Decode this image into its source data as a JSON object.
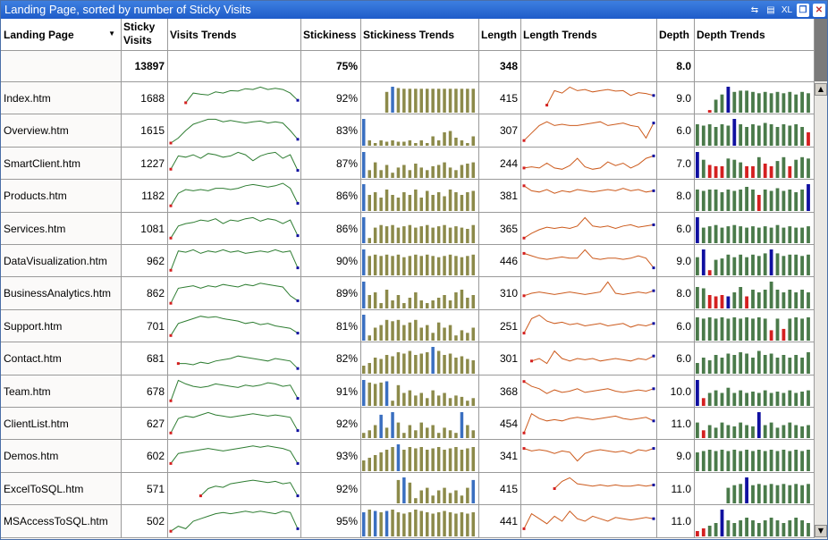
{
  "window": {
    "title": "Landing Page, sorted by number of Sticky Visits",
    "buttons": {
      "b1": "⇆",
      "b2": "▤",
      "xl": "XL",
      "restore": "❐",
      "close": "✕"
    }
  },
  "headers": {
    "page": "Landing Page",
    "sticky_line1": "Sticky",
    "sticky_line2": "Visits",
    "visits_trends": "Visits Trends",
    "stickiness": "Stickiness",
    "stickiness_trends": "Stickiness Trends",
    "length": "Length",
    "length_trends": "Length Trends",
    "depth": "Depth",
    "depth_trends": "Depth Trends"
  },
  "totals": {
    "sticky": "13897",
    "stickiness": "75%",
    "length": "348",
    "depth": "8.0"
  },
  "colors": {
    "visits_line": "#2e7d32",
    "stickiness_bar": "#8c8a4a",
    "stickiness_hi": "#3a6fc0",
    "length_line": "#cc5a1c",
    "depth_bar": "#4a7a4a",
    "depth_low": "#d42020",
    "depth_hi": "#1010a0",
    "start_dot": "#d42020",
    "end_dot": "#1010a0"
  },
  "rows": [
    {
      "page": "Index.htm",
      "sticky": "1688",
      "stickiness": "92%",
      "length": "415",
      "depth": "9.0",
      "visits": [
        null,
        null,
        0.3,
        0.7,
        0.65,
        0.62,
        0.75,
        0.7,
        0.8,
        0.78,
        0.88,
        0.85,
        0.95,
        0.85,
        0.9,
        0.85,
        0.7,
        0.4
      ],
      "stick": [
        0,
        0,
        0,
        0,
        0.8,
        1.0,
        0.95,
        0.92,
        0.92,
        0.92,
        0.92,
        0.92,
        0.92,
        0.92,
        0.92,
        0.92,
        0.92,
        0.92,
        0.92,
        0.92
      ],
      "stick_hi": [
        5
      ],
      "len": [
        null,
        null,
        null,
        0.2,
        0.8,
        0.7,
        0.95,
        0.8,
        0.85,
        0.75,
        0.8,
        0.85,
        0.78,
        0.8,
        0.6,
        0.72,
        0.68,
        0.6
      ],
      "dep": [
        0,
        0,
        0.1,
        0.5,
        0.7,
        1.0,
        0.8,
        0.85,
        0.85,
        0.8,
        0.75,
        0.8,
        0.75,
        0.8,
        0.75,
        0.8,
        0.7,
        0.8,
        0.75
      ],
      "dep_low": [
        2
      ],
      "dep_hi": [
        5
      ]
    },
    {
      "page": "Overview.htm",
      "sticky": "1615",
      "stickiness": "83%",
      "length": "307",
      "depth": "6.0",
      "visits": [
        0.0,
        0.2,
        0.5,
        0.75,
        0.85,
        0.95,
        0.95,
        0.85,
        0.9,
        0.85,
        0.8,
        0.85,
        0.88,
        0.8,
        0.85,
        0.8,
        0.5,
        0.15
      ],
      "stick": [
        1.0,
        0.2,
        0.1,
        0.2,
        0.15,
        0.2,
        0.15,
        0.15,
        0.2,
        0.1,
        0.2,
        0.1,
        0.35,
        0.2,
        0.5,
        0.55,
        0.3,
        0.2,
        0.1,
        0.35
      ],
      "stick_hi": [
        0
      ],
      "len": [
        0.1,
        0.4,
        0.7,
        0.85,
        0.7,
        0.75,
        0.7,
        0.7,
        0.75,
        0.8,
        0.85,
        0.7,
        0.75,
        0.8,
        0.7,
        0.65,
        0.2,
        0.8
      ],
      "dep": [
        0.8,
        0.75,
        0.8,
        0.7,
        0.8,
        0.75,
        1.0,
        0.8,
        0.7,
        0.8,
        0.75,
        0.85,
        0.8,
        0.7,
        0.8,
        0.75,
        0.8,
        0.7,
        0.5
      ],
      "dep_low": [
        18
      ],
      "dep_hi": [
        6
      ]
    },
    {
      "page": "SmartClient.htm",
      "sticky": "1227",
      "stickiness": "87%",
      "length": "244",
      "depth": "7.0",
      "visits": [
        0.25,
        0.8,
        0.75,
        0.85,
        0.7,
        0.9,
        0.85,
        0.75,
        0.8,
        0.95,
        0.85,
        0.6,
        0.8,
        0.9,
        0.95,
        0.7,
        0.85,
        0.2
      ],
      "stick": [
        1.0,
        0.3,
        0.6,
        0.3,
        0.5,
        0.2,
        0.4,
        0.5,
        0.3,
        0.55,
        0.4,
        0.3,
        0.45,
        0.5,
        0.6,
        0.4,
        0.3,
        0.5,
        0.55,
        0.6
      ],
      "stick_hi": [
        0
      ],
      "len": [
        0.3,
        0.35,
        0.3,
        0.5,
        0.3,
        0.25,
        0.4,
        0.7,
        0.35,
        0.25,
        0.3,
        0.55,
        0.4,
        0.5,
        0.3,
        0.45,
        0.7,
        0.8
      ],
      "dep": [
        1.0,
        0.7,
        0.5,
        0.45,
        0.45,
        0.75,
        0.7,
        0.6,
        0.45,
        0.45,
        0.8,
        0.55,
        0.45,
        0.65,
        0.8,
        0.45,
        0.7,
        0.8,
        0.75
      ],
      "dep_low": [
        2,
        3,
        4,
        8,
        9,
        11,
        12,
        15
      ],
      "dep_hi": [
        0
      ]
    },
    {
      "page": "Products.htm",
      "sticky": "1182",
      "stickiness": "86%",
      "length": "381",
      "depth": "8.0",
      "visits": [
        0.1,
        0.6,
        0.75,
        0.7,
        0.75,
        0.7,
        0.8,
        0.8,
        0.75,
        0.8,
        0.9,
        0.95,
        0.9,
        0.85,
        0.9,
        1.0,
        0.8,
        0.2
      ],
      "stick": [
        1.0,
        0.6,
        0.7,
        0.5,
        0.8,
        0.6,
        0.5,
        0.7,
        0.6,
        0.8,
        0.5,
        0.75,
        0.6,
        0.7,
        0.55,
        0.8,
        0.7,
        0.6,
        0.7,
        0.75
      ],
      "stick_hi": [
        0
      ],
      "len": [
        0.9,
        0.7,
        0.65,
        0.75,
        0.6,
        0.7,
        0.65,
        0.75,
        0.7,
        0.65,
        0.7,
        0.75,
        0.7,
        0.8,
        0.7,
        0.75,
        0.65,
        0.7
      ],
      "dep": [
        0.8,
        0.75,
        0.8,
        0.8,
        0.7,
        0.8,
        0.75,
        0.8,
        0.9,
        0.8,
        0.6,
        0.8,
        0.75,
        0.85,
        0.75,
        0.8,
        0.7,
        0.8,
        1.0
      ],
      "dep_low": [
        10
      ],
      "dep_hi": [
        18
      ]
    },
    {
      "page": "Services.htm",
      "sticky": "1081",
      "stickiness": "86%",
      "length": "365",
      "depth": "6.0",
      "visits": [
        0.1,
        0.6,
        0.7,
        0.75,
        0.85,
        0.8,
        0.9,
        0.7,
        0.85,
        0.8,
        0.9,
        0.95,
        0.8,
        0.9,
        0.85,
        0.7,
        0.85,
        0.2
      ],
      "stick": [
        1.0,
        0.2,
        0.6,
        0.7,
        0.65,
        0.7,
        0.6,
        0.65,
        0.7,
        0.6,
        0.65,
        0.7,
        0.6,
        0.65,
        0.7,
        0.6,
        0.65,
        0.6,
        0.55,
        0.7
      ],
      "stick_hi": [
        0
      ],
      "len": [
        0.1,
        0.3,
        0.45,
        0.55,
        0.5,
        0.55,
        0.5,
        0.6,
        0.95,
        0.6,
        0.55,
        0.6,
        0.5,
        0.6,
        0.65,
        0.55,
        0.6,
        0.65
      ],
      "dep": [
        1.0,
        0.6,
        0.65,
        0.7,
        0.6,
        0.65,
        0.7,
        0.65,
        0.6,
        0.65,
        0.6,
        0.65,
        0.6,
        0.7,
        0.6,
        0.65,
        0.6,
        0.6,
        0.65
      ],
      "dep_low": [],
      "dep_hi": [
        0
      ]
    },
    {
      "page": "DataVisualization.htm",
      "sticky": "962",
      "stickiness": "90%",
      "length": "446",
      "depth": "9.0",
      "visits": [
        0.1,
        0.9,
        0.85,
        0.95,
        0.8,
        0.9,
        0.85,
        0.95,
        0.85,
        0.9,
        0.8,
        0.85,
        0.9,
        0.85,
        0.95,
        0.85,
        0.9,
        0.2
      ],
      "stick": [
        1.0,
        0.75,
        0.8,
        0.75,
        0.8,
        0.75,
        0.8,
        0.7,
        0.75,
        0.8,
        0.75,
        0.8,
        0.75,
        0.7,
        0.75,
        0.8,
        0.75,
        0.7,
        0.75,
        0.8
      ],
      "stick_hi": [
        0
      ],
      "len": [
        0.8,
        0.7,
        0.6,
        0.55,
        0.6,
        0.65,
        0.6,
        0.6,
        0.95,
        0.6,
        0.55,
        0.6,
        0.6,
        0.55,
        0.6,
        0.7,
        0.6,
        0.2
      ],
      "dep": [
        0.7,
        1.0,
        0.2,
        0.6,
        0.65,
        0.8,
        0.7,
        0.8,
        0.7,
        0.8,
        0.75,
        0.85,
        1.0,
        0.85,
        0.75,
        0.8,
        0.8,
        0.75,
        0.8
      ],
      "dep_low": [
        2
      ],
      "dep_hi": [
        1,
        12
      ]
    },
    {
      "page": "BusinessAnalytics.htm",
      "sticky": "862",
      "stickiness": "89%",
      "length": "310",
      "depth": "8.0",
      "visits": [
        0.1,
        0.7,
        0.75,
        0.8,
        0.7,
        0.8,
        0.75,
        0.85,
        0.8,
        0.75,
        0.85,
        0.8,
        0.9,
        0.85,
        0.8,
        0.75,
        0.4,
        0.2
      ],
      "stick": [
        1.0,
        0.5,
        0.6,
        0.2,
        0.7,
        0.3,
        0.5,
        0.2,
        0.4,
        0.6,
        0.3,
        0.2,
        0.3,
        0.4,
        0.5,
        0.3,
        0.6,
        0.7,
        0.4,
        0.5
      ],
      "stick_hi": [
        0
      ],
      "len": [
        0.4,
        0.5,
        0.55,
        0.5,
        0.45,
        0.5,
        0.55,
        0.5,
        0.45,
        0.5,
        0.55,
        0.95,
        0.5,
        0.45,
        0.5,
        0.55,
        0.5,
        0.6
      ],
      "dep": [
        0.8,
        0.75,
        0.5,
        0.45,
        0.5,
        0.45,
        0.6,
        0.8,
        0.45,
        0.7,
        0.6,
        0.7,
        1.0,
        0.7,
        0.6,
        0.7,
        0.6,
        0.7,
        0.6
      ],
      "dep_low": [
        2,
        3,
        4,
        8
      ],
      "dep_hi": [
        5
      ]
    },
    {
      "page": "Support.htm",
      "sticky": "701",
      "stickiness": "81%",
      "length": "251",
      "depth": "6.0",
      "visits": [
        0.1,
        0.6,
        0.7,
        0.8,
        0.9,
        0.85,
        0.88,
        0.8,
        0.75,
        0.7,
        0.6,
        0.65,
        0.55,
        0.6,
        0.5,
        0.45,
        0.4,
        0.2
      ],
      "stick": [
        1.0,
        0.2,
        0.5,
        0.6,
        0.8,
        0.75,
        0.8,
        0.6,
        0.7,
        0.8,
        0.5,
        0.6,
        0.3,
        0.7,
        0.5,
        0.6,
        0.2,
        0.4,
        0.3,
        0.5
      ],
      "stick_hi": [
        0
      ],
      "len": [
        0.2,
        0.8,
        0.95,
        0.7,
        0.6,
        0.65,
        0.55,
        0.6,
        0.5,
        0.55,
        0.6,
        0.5,
        0.55,
        0.6,
        0.45,
        0.55,
        0.5,
        0.6
      ],
      "dep": [
        0.9,
        0.85,
        0.9,
        0.85,
        0.9,
        0.85,
        0.9,
        0.85,
        0.9,
        0.85,
        0.9,
        0.85,
        0.4,
        0.85,
        0.45,
        0.85,
        0.9,
        0.85,
        0.9
      ],
      "dep_low": [
        12,
        14
      ],
      "dep_hi": []
    },
    {
      "page": "Contact.htm",
      "sticky": "681",
      "stickiness": "82%",
      "length": "301",
      "depth": "6.0",
      "visits": [
        null,
        0.3,
        0.3,
        0.25,
        0.35,
        0.3,
        0.4,
        0.45,
        0.5,
        0.6,
        0.55,
        0.5,
        0.45,
        0.4,
        0.5,
        0.45,
        0.4,
        0.1
      ],
      "stick": [
        0.3,
        0.4,
        0.6,
        0.55,
        0.7,
        0.65,
        0.8,
        0.75,
        0.85,
        0.7,
        0.75,
        0.8,
        1.0,
        0.85,
        0.7,
        0.75,
        0.6,
        0.65,
        0.55,
        0.5
      ],
      "stick_hi": [
        12
      ],
      "len": [
        null,
        0.4,
        0.5,
        0.3,
        0.8,
        0.5,
        0.4,
        0.5,
        0.45,
        0.5,
        0.4,
        0.45,
        0.5,
        0.45,
        0.4,
        0.5,
        0.45,
        0.6
      ],
      "dep": [
        0.4,
        0.6,
        0.5,
        0.7,
        0.6,
        0.75,
        0.7,
        0.8,
        0.75,
        0.6,
        0.85,
        0.7,
        0.75,
        0.6,
        0.7,
        0.6,
        0.7,
        0.6,
        0.8
      ],
      "dep_low": [],
      "dep_hi": []
    },
    {
      "page": "Team.htm",
      "sticky": "678",
      "stickiness": "91%",
      "length": "368",
      "depth": "10.0",
      "visits": [
        0.1,
        0.95,
        0.8,
        0.7,
        0.65,
        0.7,
        0.8,
        0.75,
        0.7,
        0.65,
        0.75,
        0.7,
        0.75,
        0.85,
        0.8,
        0.7,
        0.75,
        0.2
      ],
      "stick": [
        1.0,
        0.9,
        0.85,
        0.9,
        0.95,
        0.2,
        0.8,
        0.5,
        0.6,
        0.4,
        0.5,
        0.3,
        0.6,
        0.4,
        0.5,
        0.3,
        0.4,
        0.35,
        0.2,
        0.3
      ],
      "stick_hi": [
        0,
        4
      ],
      "len": [
        0.9,
        0.7,
        0.6,
        0.4,
        0.55,
        0.45,
        0.5,
        0.6,
        0.45,
        0.5,
        0.55,
        0.6,
        0.5,
        0.45,
        0.5,
        0.55,
        0.5,
        0.6
      ],
      "dep": [
        1.0,
        0.3,
        0.5,
        0.6,
        0.5,
        0.7,
        0.5,
        0.6,
        0.5,
        0.55,
        0.5,
        0.6,
        0.5,
        0.55,
        0.5,
        0.6,
        0.5,
        0.55,
        0.6
      ],
      "dep_low": [
        1
      ],
      "dep_hi": [
        0
      ]
    },
    {
      "page": "ClientList.htm",
      "sticky": "627",
      "stickiness": "92%",
      "length": "454",
      "depth": "11.0",
      "visits": [
        0.1,
        0.7,
        0.8,
        0.75,
        0.85,
        0.95,
        0.85,
        0.8,
        0.75,
        0.8,
        0.85,
        0.9,
        0.85,
        0.8,
        0.85,
        0.8,
        0.75,
        0.2
      ],
      "stick": [
        0.2,
        0.3,
        0.5,
        0.9,
        0.4,
        1.0,
        0.6,
        0.2,
        0.5,
        0.3,
        0.6,
        0.4,
        0.5,
        0.2,
        0.4,
        0.3,
        0.2,
        1.0,
        0.5,
        0.3
      ],
      "stick_hi": [
        3,
        5,
        17
      ],
      "len": [
        0.1,
        0.9,
        0.7,
        0.6,
        0.65,
        0.6,
        0.7,
        0.75,
        0.7,
        0.65,
        0.7,
        0.75,
        0.8,
        0.7,
        0.65,
        0.7,
        0.75,
        0.6
      ],
      "dep": [
        0.6,
        0.3,
        0.5,
        0.4,
        0.6,
        0.5,
        0.45,
        0.6,
        0.5,
        0.45,
        1.0,
        0.5,
        0.6,
        0.4,
        0.5,
        0.6,
        0.5,
        0.45,
        0.5
      ],
      "dep_low": [
        1
      ],
      "dep_hi": [
        10
      ]
    },
    {
      "page": "Demos.htm",
      "sticky": "602",
      "stickiness": "93%",
      "length": "341",
      "depth": "9.0",
      "visits": [
        0.2,
        0.6,
        0.65,
        0.7,
        0.75,
        0.8,
        0.75,
        0.7,
        0.75,
        0.8,
        0.85,
        0.9,
        0.85,
        0.9,
        0.85,
        0.8,
        0.7,
        0.2
      ],
      "stick": [
        0.4,
        0.5,
        0.6,
        0.7,
        0.8,
        0.9,
        1.0,
        0.8,
        0.9,
        0.85,
        0.9,
        0.8,
        0.85,
        0.9,
        0.8,
        0.85,
        0.9,
        0.8,
        0.85,
        0.9
      ],
      "stick_hi": [
        6
      ],
      "len": [
        0.8,
        0.7,
        0.75,
        0.7,
        0.6,
        0.7,
        0.65,
        0.3,
        0.6,
        0.7,
        0.75,
        0.7,
        0.65,
        0.7,
        0.6,
        0.75,
        0.7,
        0.8
      ],
      "dep": [
        0.7,
        0.75,
        0.8,
        0.75,
        0.8,
        0.75,
        0.8,
        0.75,
        0.8,
        0.75,
        0.8,
        0.75,
        0.8,
        0.75,
        0.8,
        0.75,
        0.8,
        0.75,
        0.8
      ],
      "dep_low": [],
      "dep_hi": []
    },
    {
      "page": "ExcelToSQL.htm",
      "sticky": "571",
      "stickiness": "92%",
      "length": "415",
      "depth": "11.0",
      "visits": [
        null,
        null,
        null,
        null,
        0.2,
        0.5,
        0.6,
        0.55,
        0.7,
        0.75,
        0.8,
        0.85,
        0.8,
        0.75,
        0.8,
        0.7,
        0.75,
        0.2
      ],
      "stick": [
        0,
        0,
        0,
        0,
        0,
        0,
        0.9,
        1.0,
        0.8,
        0.2,
        0.5,
        0.6,
        0.3,
        0.5,
        0.6,
        0.4,
        0.5,
        0.3,
        0.6,
        0.9
      ],
      "stick_hi": [
        7,
        19
      ],
      "len": [
        null,
        null,
        null,
        null,
        0.5,
        0.8,
        0.95,
        0.7,
        0.65,
        0.6,
        0.65,
        0.6,
        0.65,
        0.6,
        0.6,
        0.65,
        0.6,
        0.65
      ],
      "dep": [
        0,
        0,
        0,
        0,
        0,
        0.6,
        0.7,
        0.75,
        1.0,
        0.7,
        0.75,
        0.7,
        0.75,
        0.7,
        0.75,
        0.7,
        0.75,
        0.7,
        0.75
      ],
      "dep_low": [],
      "dep_hi": [
        8
      ]
    },
    {
      "page": "MSAccessToSQL.htm",
      "sticky": "502",
      "stickiness": "95%",
      "length": "441",
      "depth": "11.0",
      "visits": [
        0.1,
        0.3,
        0.2,
        0.5,
        0.6,
        0.7,
        0.8,
        0.85,
        0.8,
        0.85,
        0.9,
        0.85,
        0.9,
        0.85,
        0.8,
        0.9,
        0.85,
        0.2
      ],
      "stick": [
        0.9,
        1.0,
        0.95,
        0.9,
        0.95,
        1.0,
        0.9,
        0.85,
        0.9,
        1.0,
        0.95,
        0.9,
        0.85,
        0.9,
        0.95,
        0.9,
        0.85,
        0.9,
        0.85,
        0.9
      ],
      "stick_hi": [
        0,
        2,
        4
      ],
      "len": [
        0.2,
        0.8,
        0.6,
        0.4,
        0.7,
        0.5,
        0.9,
        0.6,
        0.5,
        0.7,
        0.6,
        0.5,
        0.65,
        0.6,
        0.55,
        0.6,
        0.65,
        0.6
      ],
      "dep": [
        0.2,
        0.3,
        0.4,
        0.5,
        1.0,
        0.6,
        0.5,
        0.6,
        0.7,
        0.6,
        0.5,
        0.6,
        0.7,
        0.6,
        0.5,
        0.6,
        0.7,
        0.6,
        0.5
      ],
      "dep_low": [
        0,
        1
      ],
      "dep_hi": [
        4
      ]
    }
  ]
}
